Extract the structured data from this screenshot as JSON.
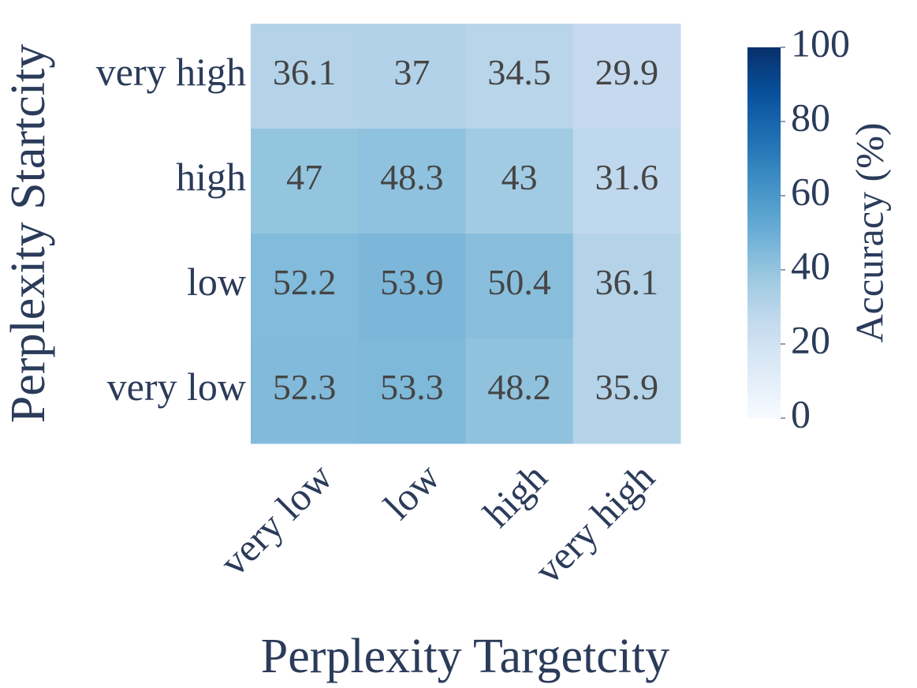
{
  "chart_data": {
    "type": "heatmap",
    "xlabel": "Perplexity Targetcity",
    "ylabel": "Perplexity Startcity",
    "x_categories": [
      "very low",
      "low",
      "high",
      "very high"
    ],
    "y_categories": [
      "very high",
      "high",
      "low",
      "very low"
    ],
    "values": [
      [
        36.1,
        37,
        34.5,
        29.9
      ],
      [
        47,
        48.3,
        43,
        31.6
      ],
      [
        52.2,
        53.9,
        50.4,
        36.1
      ],
      [
        52.3,
        53.3,
        48.2,
        35.9
      ]
    ],
    "colormap": "Blues",
    "clim": [
      0,
      100
    ],
    "cticks": [
      0,
      20,
      40,
      60,
      80,
      100
    ],
    "colorbar_label": "Accuracy (%)"
  }
}
